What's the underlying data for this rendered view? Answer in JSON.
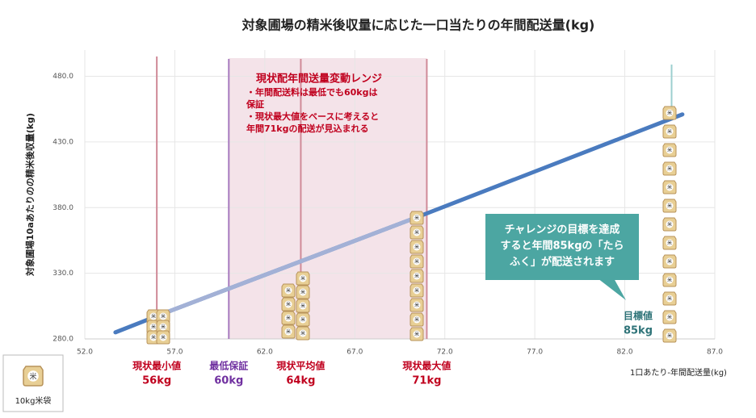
{
  "chart_data": {
    "type": "line",
    "title": "対象圃場の精米後収量に応じた一口当たりの年間配送量(kg)",
    "x_label": "1口あたり-年間配送量(kg)",
    "y_label": "対象圃場10aあたりのの精米後収量(kg)",
    "x": [
      53.7,
      56.3,
      70.7,
      85.2
    ],
    "series": [
      {
        "color": "#4a7bbf",
        "values": [
          285,
          299,
          374,
          451
        ]
      },
      {
        "color": "#a3b1d6",
        "values": [
          null,
          299,
          374,
          null
        ]
      }
    ],
    "xlim": [
      52,
      87
    ],
    "ylim": [
      280,
      500
    ],
    "xticks": [
      {
        "value": 52,
        "label": "52.0"
      },
      {
        "value": 57,
        "label": "57.0"
      },
      {
        "value": 62,
        "label": "62.0"
      },
      {
        "value": 67,
        "label": "67.0"
      },
      {
        "value": 72,
        "label": "72.0"
      },
      {
        "value": 77,
        "label": "77.0"
      },
      {
        "value": 82,
        "label": "82.0"
      },
      {
        "value": 87,
        "label": "87.0"
      }
    ],
    "yticks": [
      {
        "value": 280,
        "label": "280.0"
      },
      {
        "value": 330,
        "label": "330.0"
      },
      {
        "value": 380,
        "label": "380.0"
      },
      {
        "value": 430,
        "label": "430.0"
      },
      {
        "value": 480,
        "label": "480.0"
      }
    ],
    "grid": true,
    "range": {
      "from": 60,
      "to": 71,
      "color": "#f4e3e9",
      "title": "現状配年間送量変動レンジ",
      "lines": [
        "・年間配送料は最低でも60kgは",
        "保証",
        "・現状最大値をベースに考えると",
        "年間71kgの配送が見込まれる"
      ]
    },
    "reference_lines": [
      {
        "x": 56,
        "color": "#d08a98",
        "text_color": "#c0001e",
        "label": "現状最小値",
        "value_label": "56kg"
      },
      {
        "x": 60,
        "color": "#a77bbf",
        "text_color": "#7030a0",
        "label": "最低保証",
        "value_label": "60kg"
      },
      {
        "x": 64,
        "color": "#d08a98",
        "text_color": "#c0001e",
        "label": "現状平均値",
        "value_label": "64kg"
      },
      {
        "x": 71,
        "color": "#d08a98",
        "text_color": "#c0001e",
        "label": "現状最大値",
        "value_label": "71kg"
      }
    ],
    "goal": {
      "x": 84.6,
      "color": "#9ccfcf",
      "text_color": "#2e7378",
      "label": "目標値",
      "value_label": "85kg"
    },
    "callout": {
      "color": "#4ca6a2",
      "lines": [
        "チャレンジの目標を達成",
        "すると年間85kgの「たら",
        "ふく」が配送されます"
      ]
    },
    "legend_label": "10kg米袋"
  }
}
